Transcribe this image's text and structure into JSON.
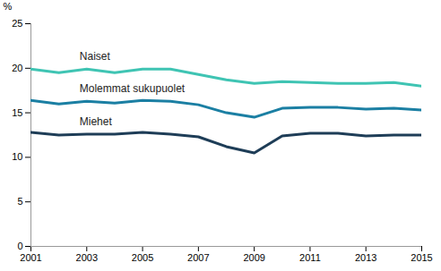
{
  "chart_data": {
    "type": "line",
    "y_label": "%",
    "x": [
      2001,
      2002,
      2003,
      2004,
      2005,
      2006,
      2007,
      2008,
      2009,
      2010,
      2011,
      2012,
      2013,
      2014,
      2015
    ],
    "series": [
      {
        "name": "Naiset",
        "color": "#3fc4b3",
        "values": [
          19.9,
          19.5,
          19.9,
          19.5,
          19.9,
          19.9,
          19.3,
          18.7,
          18.3,
          18.5,
          18.4,
          18.3,
          18.3,
          18.4,
          18.0
        ]
      },
      {
        "name": "Molemmat sukupuolet",
        "color": "#1b7fa3",
        "values": [
          16.4,
          16.0,
          16.3,
          16.1,
          16.4,
          16.3,
          15.9,
          15.0,
          14.5,
          15.5,
          15.6,
          15.6,
          15.4,
          15.5,
          15.3
        ]
      },
      {
        "name": "Miehet",
        "color": "#1e3d57",
        "values": [
          12.8,
          12.5,
          12.6,
          12.6,
          12.8,
          12.6,
          12.3,
          11.2,
          10.5,
          12.4,
          12.7,
          12.7,
          12.4,
          12.5,
          12.5
        ]
      }
    ],
    "xlim": [
      2001,
      2015
    ],
    "xticks": [
      2001,
      2003,
      2005,
      2007,
      2009,
      2011,
      2013,
      2015
    ],
    "ylim": [
      0,
      25
    ],
    "yticks": [
      0,
      5,
      10,
      15,
      20,
      25
    ],
    "grid": false
  }
}
